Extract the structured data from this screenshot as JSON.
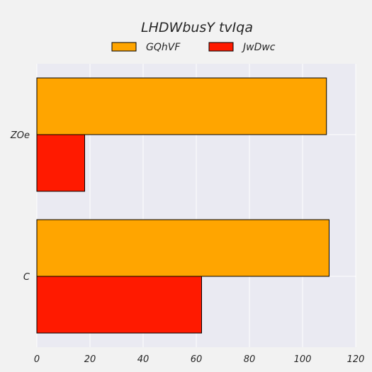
{
  "chart_data": {
    "type": "bar",
    "orientation": "horizontal",
    "title": "LHDWbusY tvIqa",
    "xlabel": "",
    "ylabel": "",
    "categories": [
      "ZOe",
      "C"
    ],
    "series": [
      {
        "name": "GQhVF",
        "values": [
          109,
          110
        ],
        "color": "#ffa500"
      },
      {
        "name": "JwDwc",
        "values": [
          18,
          62
        ],
        "color": "#ff1a00"
      }
    ],
    "xlim": [
      0,
      120
    ],
    "xticks": [
      0,
      20,
      40,
      60,
      80,
      100,
      120
    ],
    "grid": true,
    "legend_position": "top"
  },
  "colors": {
    "page_background": "#f2f2f2",
    "plot_background": "#eaeaf2",
    "grid": "#ffffff",
    "bar_edge": "#000000"
  }
}
